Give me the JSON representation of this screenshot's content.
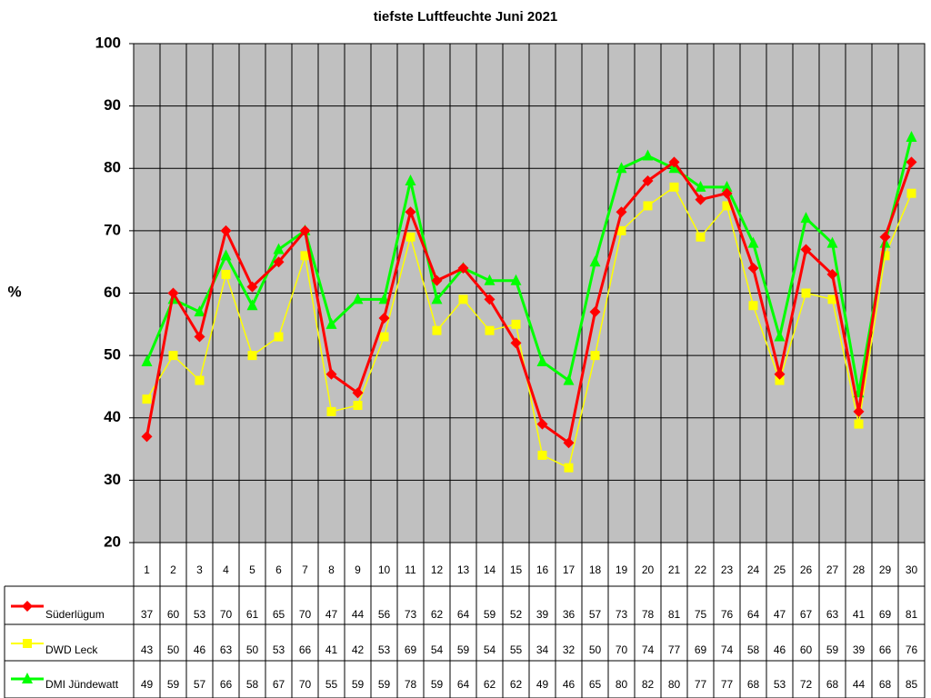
{
  "chart_data": {
    "type": "line",
    "title": "tiefste Luftfeuchte Juni 2021",
    "y_label": "%",
    "categories": [
      "1",
      "2",
      "3",
      "4",
      "5",
      "6",
      "7",
      "8",
      "9",
      "10",
      "11",
      "12",
      "13",
      "14",
      "15",
      "16",
      "17",
      "18",
      "19",
      "20",
      "21",
      "22",
      "23",
      "24",
      "25",
      "26",
      "27",
      "28",
      "29",
      "30"
    ],
    "ylim": [
      20,
      100
    ],
    "yticks": [
      20,
      30,
      40,
      50,
      60,
      70,
      80,
      90,
      100
    ],
    "grid": true,
    "plot_background": "#c0c0c0",
    "series": [
      {
        "name": "Süderlügum",
        "color": "#ff0000",
        "marker": "diamond",
        "values": [
          37,
          60,
          53,
          70,
          61,
          65,
          70,
          47,
          44,
          56,
          73,
          62,
          64,
          59,
          52,
          39,
          36,
          57,
          73,
          78,
          81,
          75,
          76,
          64,
          47,
          67,
          63,
          41,
          69,
          81
        ]
      },
      {
        "name": "DWD Leck",
        "color": "#ffff00",
        "marker": "square",
        "values": [
          43,
          50,
          46,
          63,
          50,
          53,
          66,
          41,
          42,
          53,
          69,
          54,
          59,
          54,
          55,
          34,
          32,
          50,
          70,
          74,
          77,
          69,
          74,
          58,
          46,
          60,
          59,
          39,
          66,
          76
        ]
      },
      {
        "name": "DMI Jündewatt",
        "color": "#00ff00",
        "marker": "triangle",
        "values": [
          49,
          59,
          57,
          66,
          58,
          67,
          70,
          55,
          59,
          59,
          78,
          59,
          64,
          62,
          62,
          49,
          46,
          65,
          80,
          82,
          80,
          77,
          77,
          68,
          53,
          72,
          68,
          44,
          68,
          85
        ]
      }
    ]
  }
}
